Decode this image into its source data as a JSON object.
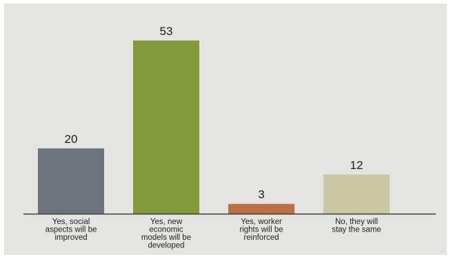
{
  "chart_data": {
    "type": "bar",
    "categories": [
      [
        "Yes, social",
        "aspects will be",
        "improved"
      ],
      [
        "Yes, new",
        "economic",
        "models will be",
        "developed"
      ],
      [
        "Yes, worker",
        "rights will be",
        "reinforced"
      ],
      [
        "No, they will",
        "stay the same"
      ]
    ],
    "values": [
      20,
      53,
      3,
      12
    ],
    "colors": [
      "#6d737d",
      "#84993a",
      "#bd7043",
      "#c9c7a4"
    ],
    "axis_color": "#3a3a3a",
    "ylim": [
      0,
      53
    ],
    "title": "",
    "xlabel": "",
    "ylabel": ""
  }
}
